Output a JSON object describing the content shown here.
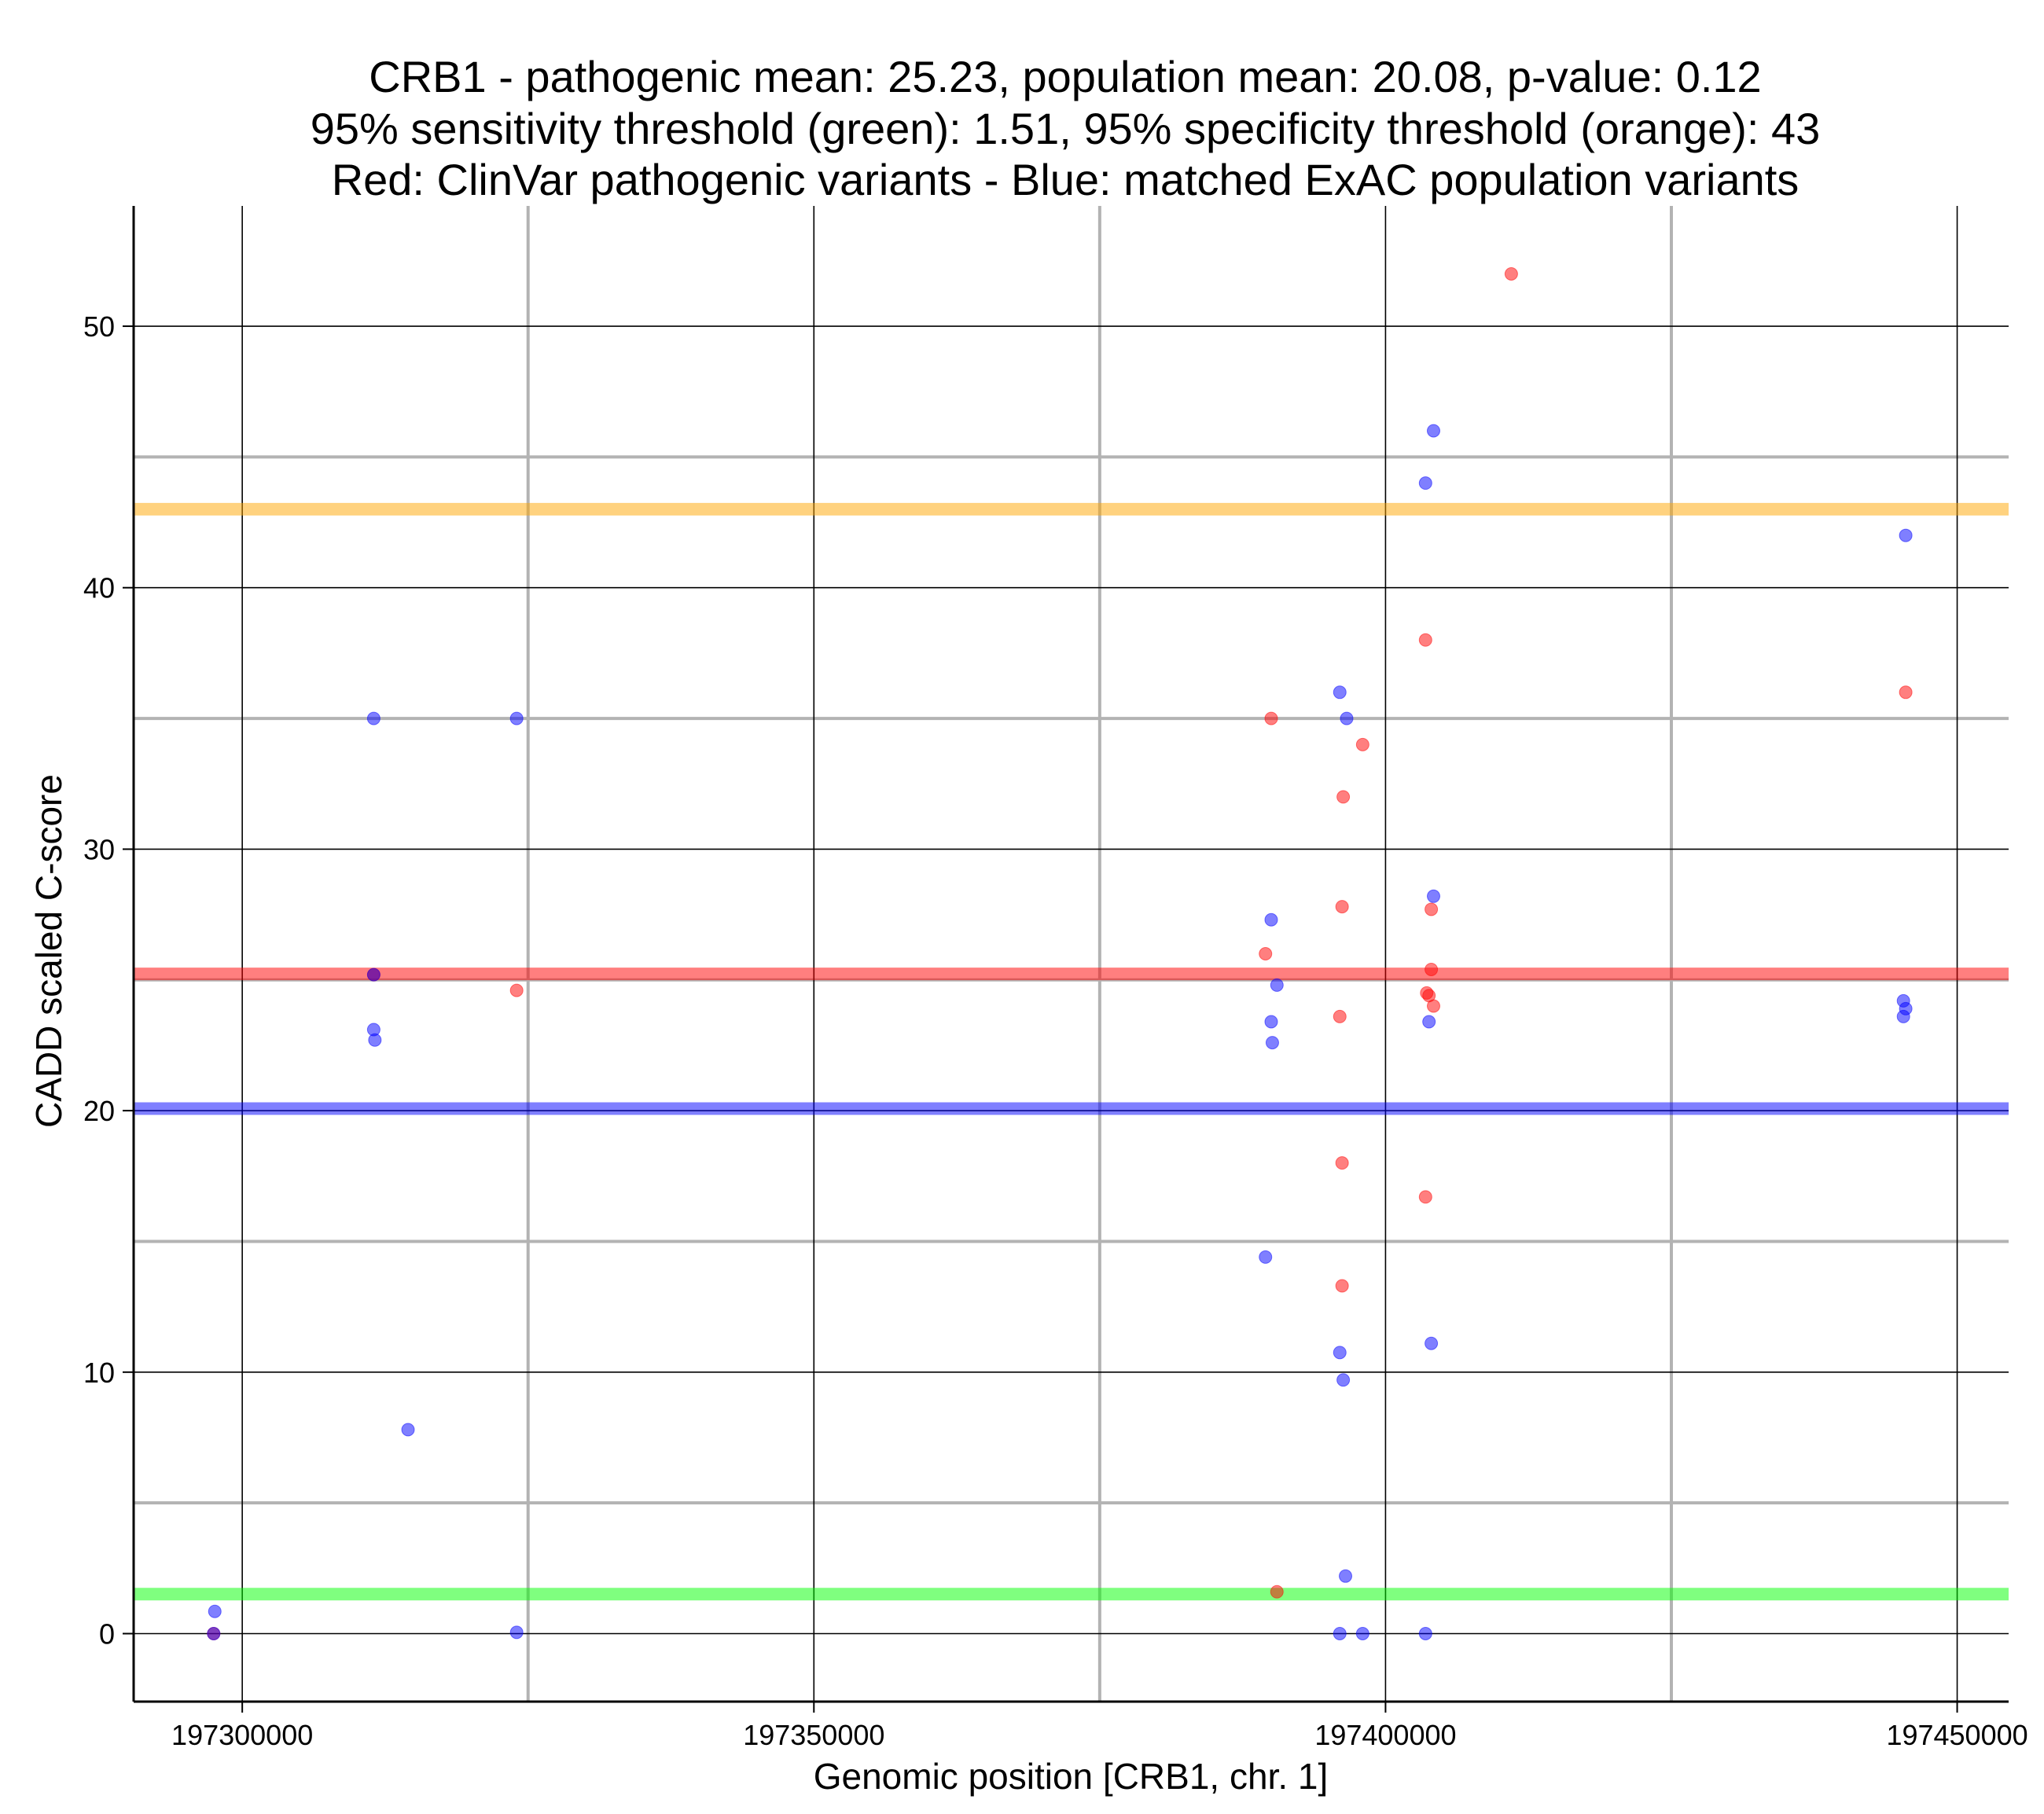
{
  "chart_data": {
    "type": "scatter",
    "title_lines": [
      "CRB1 - pathogenic mean: 25.23, population mean: 20.08, p-value: 0.12",
      "95% sensitivity threshold (green): 1.51, 95% specificity threshold (orange): 43",
      "Red: ClinVar pathogenic variants - Blue: matched ExAC population variants"
    ],
    "xlabel": "Genomic position [CRB1, chr. 1]",
    "ylabel": "CADD scaled C-score",
    "xlim": [
      197290500,
      197454500
    ],
    "ylim": [
      -2.6,
      54.6
    ],
    "x_ticks": [
      197300000,
      197350000,
      197400000,
      197450000
    ],
    "x_tick_labels": [
      "197300000",
      "197350000",
      "197400000",
      "197450000"
    ],
    "x_minor_gridlines": [
      197325000,
      197375000,
      197425000
    ],
    "y_ticks": [
      0,
      10,
      20,
      30,
      40,
      50
    ],
    "y_tick_labels": [
      "0",
      "10",
      "20",
      "30",
      "40",
      "50"
    ],
    "y_minor_gridlines": [
      5,
      15,
      25,
      35,
      45
    ],
    "grid": true,
    "horizontal_lines": [
      {
        "name": "specificity threshold",
        "value": 43,
        "color": "#FFA500"
      },
      {
        "name": "pathogenic mean",
        "value": 25.23,
        "color": "#FF0000"
      },
      {
        "name": "population mean",
        "value": 20.08,
        "color": "#0000FF"
      },
      {
        "name": "sensitivity threshold",
        "value": 1.51,
        "color": "#00FF00"
      }
    ],
    "series": [
      {
        "color": "#FF0000",
        "points": [
          {
            "x": 197297500,
            "y": 0.0
          },
          {
            "x": 197311500,
            "y": 25.2
          },
          {
            "x": 197324000,
            "y": 24.6
          },
          {
            "x": 197389500,
            "y": 26.0
          },
          {
            "x": 197390000,
            "y": 35.0
          },
          {
            "x": 197390500,
            "y": 1.6
          },
          {
            "x": 197396200,
            "y": 27.8
          },
          {
            "x": 197396200,
            "y": 18.0
          },
          {
            "x": 197396200,
            "y": 13.3
          },
          {
            "x": 197396000,
            "y": 23.6
          },
          {
            "x": 197396300,
            "y": 32.0
          },
          {
            "x": 197398000,
            "y": 34.0
          },
          {
            "x": 197403500,
            "y": 38.0
          },
          {
            "x": 197403500,
            "y": 16.7
          },
          {
            "x": 197403600,
            "y": 24.5
          },
          {
            "x": 197403800,
            "y": 24.4
          },
          {
            "x": 197404000,
            "y": 27.7
          },
          {
            "x": 197404000,
            "y": 25.4
          },
          {
            "x": 197404200,
            "y": 24.0
          },
          {
            "x": 197411000,
            "y": 52.0
          },
          {
            "x": 197445500,
            "y": 36.0
          }
        ]
      },
      {
        "color": "#0000FF",
        "points": [
          {
            "x": 197297600,
            "y": 0.85
          },
          {
            "x": 197297500,
            "y": 0.0
          },
          {
            "x": 197311500,
            "y": 35.0
          },
          {
            "x": 197311500,
            "y": 25.2
          },
          {
            "x": 197311500,
            "y": 23.1
          },
          {
            "x": 197311600,
            "y": 22.7
          },
          {
            "x": 197314500,
            "y": 7.8
          },
          {
            "x": 197324000,
            "y": 35.0
          },
          {
            "x": 197324000,
            "y": 0.05
          },
          {
            "x": 197389500,
            "y": 14.4
          },
          {
            "x": 197390000,
            "y": 27.3
          },
          {
            "x": 197390500,
            "y": 24.8
          },
          {
            "x": 197390000,
            "y": 23.4
          },
          {
            "x": 197390100,
            "y": 22.6
          },
          {
            "x": 197396000,
            "y": 36.0
          },
          {
            "x": 197396600,
            "y": 35.0
          },
          {
            "x": 197396000,
            "y": 10.75
          },
          {
            "x": 197396300,
            "y": 9.7
          },
          {
            "x": 197396500,
            "y": 2.2
          },
          {
            "x": 197396000,
            "y": 0.0
          },
          {
            "x": 197398000,
            "y": 0.0
          },
          {
            "x": 197403500,
            "y": 44.0
          },
          {
            "x": 197404200,
            "y": 46.0
          },
          {
            "x": 197404200,
            "y": 28.2
          },
          {
            "x": 197403800,
            "y": 23.4
          },
          {
            "x": 197404000,
            "y": 11.1
          },
          {
            "x": 197403500,
            "y": 0.0
          },
          {
            "x": 197445500,
            "y": 42.0
          },
          {
            "x": 197445300,
            "y": 24.2
          },
          {
            "x": 197445500,
            "y": 23.9
          },
          {
            "x": 197445300,
            "y": 23.6
          }
        ]
      }
    ]
  }
}
